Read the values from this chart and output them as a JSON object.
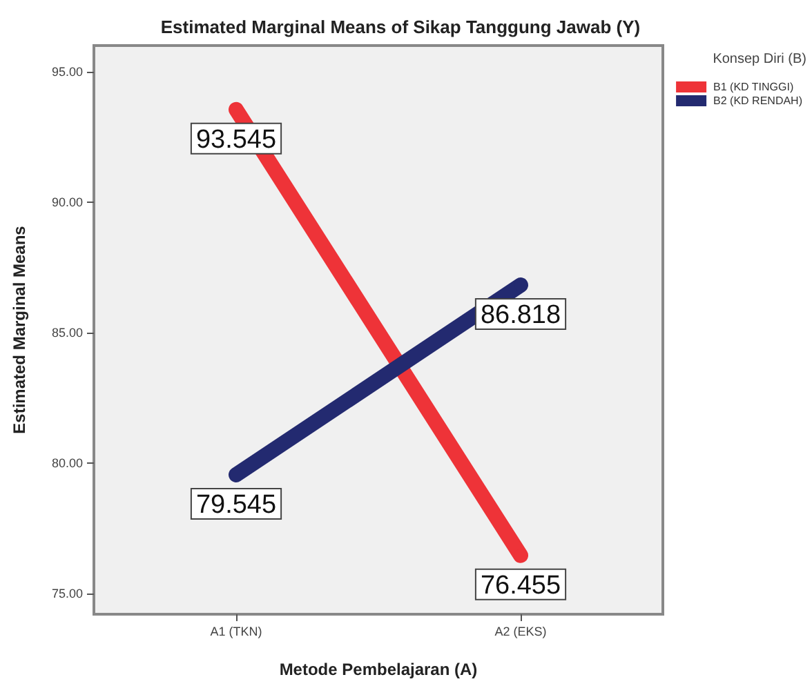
{
  "chart_data": {
    "type": "line",
    "title": "Estimated Marginal Means of Sikap Tanggung Jawab (Y)",
    "xlabel": "Metode Pembelajaran (A)",
    "ylabel": "Estimated Marginal Means",
    "legend_title": "Konsep Diri (B)",
    "categories": [
      "A1 (TKN)",
      "A2 (EKS)"
    ],
    "series": [
      {
        "name": "B1 (KD TINGGI)",
        "color": "#ee3338",
        "values": [
          93.545,
          76.455
        ]
      },
      {
        "name": "B2 (KD RENDAH)",
        "color": "#232a70",
        "values": [
          79.545,
          86.818
        ]
      }
    ],
    "ylim": [
      74.2,
      96
    ],
    "yticks": [
      {
        "value": 75,
        "label": "75.00"
      },
      {
        "value": 80,
        "label": "80.00"
      },
      {
        "value": 85,
        "label": "85.00"
      },
      {
        "value": 90,
        "label": "90.00"
      },
      {
        "value": 95,
        "label": "95.00"
      }
    ],
    "data_labels": true,
    "legend": "top right",
    "marker": "circle",
    "grid": false
  }
}
